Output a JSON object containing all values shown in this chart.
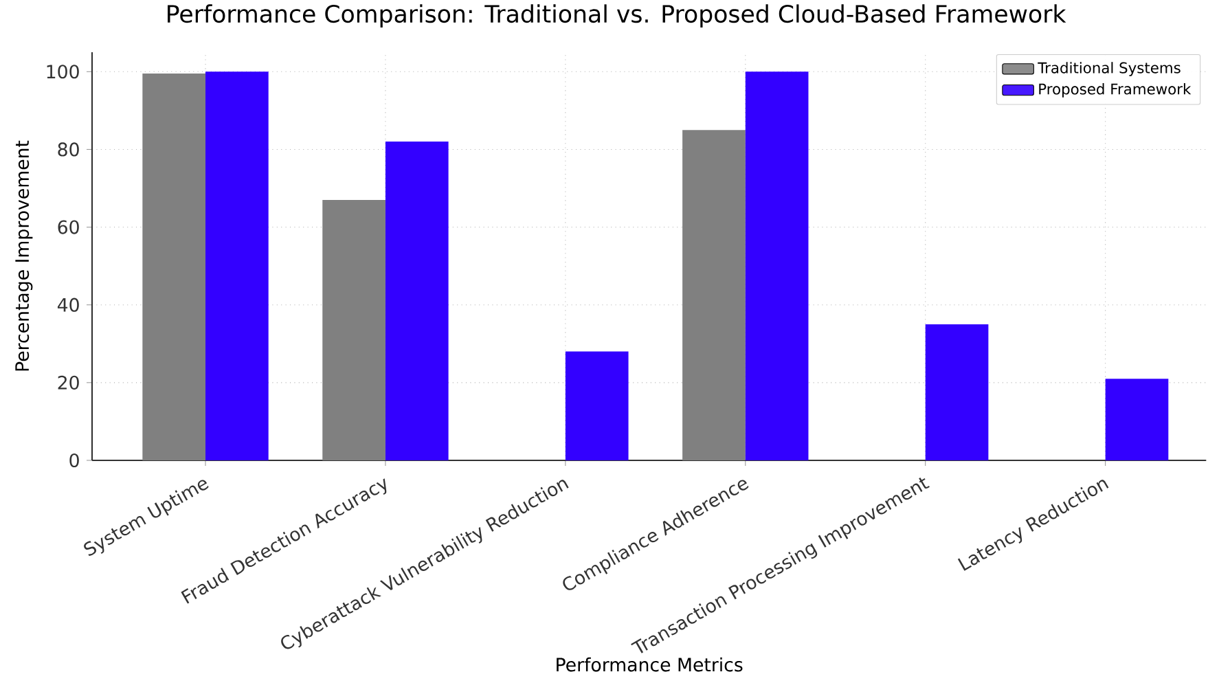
{
  "chart_data": {
    "type": "bar",
    "title": "Performance Comparison: Traditional vs. Proposed Cloud-Based Framework",
    "xlabel": "Performance Metrics",
    "ylabel": "Percentage Improvement",
    "categories": [
      "System Uptime",
      "Fraud Detection Accuracy",
      "Cyberattack Vulnerability Reduction",
      "Compliance Adherence",
      "Transaction Processing Improvement",
      "Latency Reduction"
    ],
    "series": [
      {
        "name": "Traditional Systems",
        "color": "#808080",
        "values": [
          99.5,
          67,
          0,
          85,
          0,
          0
        ]
      },
      {
        "name": "Proposed Framework",
        "color": "#3300ff",
        "values": [
          100,
          82,
          28,
          100,
          35,
          21
        ]
      }
    ],
    "ylim": [
      0,
      105
    ],
    "yticks": [
      0,
      20,
      40,
      60,
      80,
      100
    ],
    "grid": true,
    "legend": "top right"
  }
}
